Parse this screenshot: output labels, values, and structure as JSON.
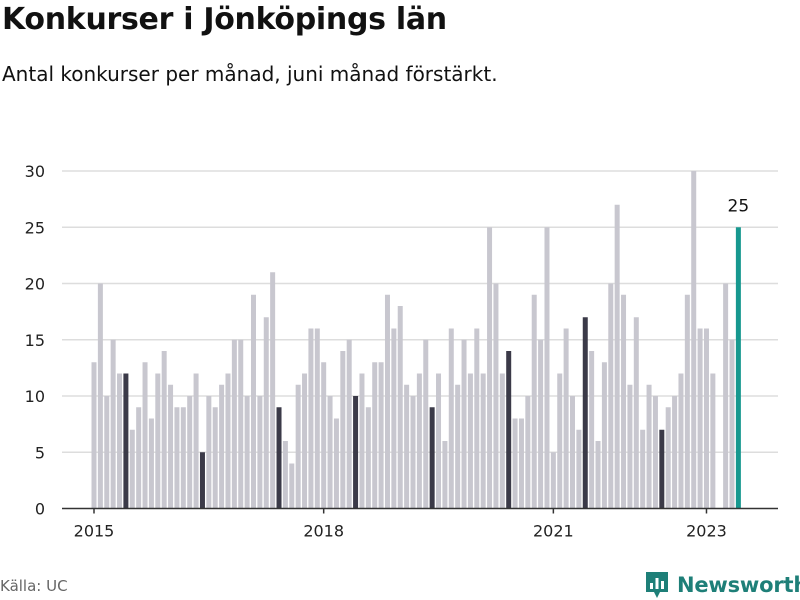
{
  "header": {
    "title": "Konkurser i Jönköpings län",
    "subtitle": "Antal konkurser per månad, juni månad förstärkt."
  },
  "footer": {
    "source": "Källa: UC",
    "brand": "Newsworthy"
  },
  "colors": {
    "regular": "#c8c7cf",
    "june": "#3b3a48",
    "latest": "#17988f",
    "grid": "#dddddd",
    "axis": "#333333"
  },
  "chart_data": {
    "type": "bar",
    "title": "Konkurser i Jönköpings län",
    "subtitle": "Antal konkurser per månad, juni månad förstärkt.",
    "xlabel": "",
    "ylabel": "",
    "ylim": [
      0,
      30
    ],
    "yticks": [
      0,
      5,
      10,
      15,
      20,
      25,
      30
    ],
    "x_tick_labels": [
      "2015",
      "2018",
      "2021",
      "2023"
    ],
    "grid": true,
    "start": "2015-01",
    "end": "2023-06",
    "highlight_month": "juni",
    "annotation": {
      "month": "2023-06",
      "text": "25"
    },
    "series": [
      {
        "year": "2015",
        "values": [
          13,
          20,
          10,
          15,
          12,
          12,
          7,
          9,
          13,
          8,
          12,
          14
        ]
      },
      {
        "year": "2016",
        "values": [
          11,
          9,
          9,
          10,
          12,
          5,
          10,
          9,
          11,
          12,
          15,
          15
        ]
      },
      {
        "year": "2017",
        "values": [
          10,
          19,
          10,
          17,
          21,
          9,
          6,
          4,
          11,
          12,
          16,
          16
        ]
      },
      {
        "year": "2018",
        "values": [
          13,
          10,
          8,
          14,
          15,
          10,
          12,
          9,
          13,
          13,
          19,
          16
        ]
      },
      {
        "year": "2019",
        "values": [
          18,
          11,
          10,
          12,
          15,
          9,
          12,
          6,
          16,
          11,
          15,
          12
        ]
      },
      {
        "year": "2020",
        "values": [
          16,
          12,
          25,
          20,
          12,
          14,
          8,
          8,
          10,
          19,
          15,
          25
        ]
      },
      {
        "year": "2021",
        "values": [
          5,
          12,
          16,
          10,
          7,
          17,
          14,
          6,
          13,
          20,
          27,
          19
        ]
      },
      {
        "year": "2022",
        "values": [
          11,
          17,
          7,
          11,
          10,
          7,
          9,
          10,
          12,
          19,
          30,
          16
        ]
      },
      {
        "year": "2023",
        "values": [
          16,
          12,
          0,
          20,
          15,
          25
        ]
      }
    ]
  }
}
